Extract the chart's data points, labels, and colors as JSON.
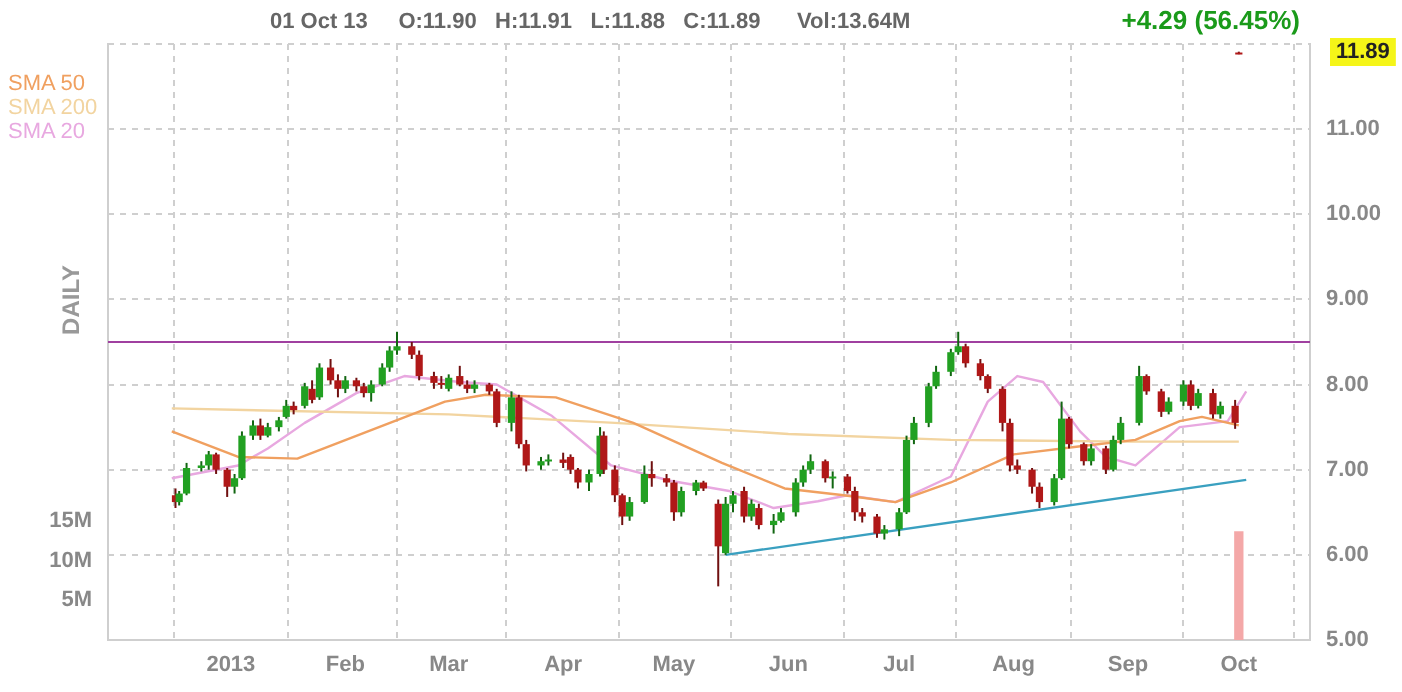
{
  "chart_data": {
    "type": "candlestick",
    "annotations": [
      "01 Oct 13     O:11.90   H:11.91   L:11.88   C:11.89      Vol:13.64M",
      "+4.29 (56.45%)",
      "11.89",
      "DAILY"
    ],
    "legend": "top left",
    "grid": true,
    "xlim": [
      "2012-12-15",
      "2013-10-04"
    ],
    "xticks": [
      {
        "value": "2013-01-01",
        "label": "2013"
      },
      {
        "value": "2013-02-01",
        "label": "Feb"
      },
      {
        "value": "2013-03-01",
        "label": "Mar"
      },
      {
        "value": "2013-04-01",
        "label": "Apr"
      },
      {
        "value": "2013-05-01",
        "label": "May"
      },
      {
        "value": "2013-06-01",
        "label": "Jun"
      },
      {
        "value": "2013-07-01",
        "label": "Jul"
      },
      {
        "value": "2013-08-01",
        "label": "Aug"
      },
      {
        "value": "2013-09-01",
        "label": "Sep"
      },
      {
        "value": "2013-10-01",
        "label": "Oct"
      }
    ],
    "ylim": [
      5,
      12
    ],
    "yticks": [
      {
        "value": 5,
        "label": "5.00"
      },
      {
        "value": 6,
        "label": "6.00"
      },
      {
        "value": 7,
        "label": "7.00"
      },
      {
        "value": 8,
        "label": "8.00"
      },
      {
        "value": 9,
        "label": "9.00"
      },
      {
        "value": 10,
        "label": "10.00"
      },
      {
        "value": 11,
        "label": "11.00"
      },
      {
        "value": 12,
        "label": null
      }
    ],
    "y2lim": [
      0,
      75
    ],
    "y2ticks": [
      {
        "value": 5,
        "label": "5M"
      },
      {
        "value": 10,
        "label": "10M"
      },
      {
        "value": 15,
        "label": "15M"
      }
    ],
    "ref_lines": [
      {
        "axis": "y",
        "value": 8.5,
        "color": "#a040a0"
      }
    ],
    "x": [
      "2012-12-17",
      "2012-12-18",
      "2012-12-20",
      "2012-12-24",
      "2012-12-26",
      "2012-12-28",
      "2012-12-31",
      "2013-01-02",
      "2013-01-04",
      "2013-01-07",
      "2013-01-09",
      "2013-01-11",
      "2013-01-14",
      "2013-01-16",
      "2013-01-18",
      "2013-01-21",
      "2013-01-23",
      "2013-01-25",
      "2013-01-28",
      "2013-01-30",
      "2013-02-01",
      "2013-02-04",
      "2013-02-06",
      "2013-02-08",
      "2013-02-11",
      "2013-02-13",
      "2013-02-15",
      "2013-02-19",
      "2013-02-21",
      "2013-02-25",
      "2013-02-27",
      "2013-03-01",
      "2013-03-04",
      "2013-03-06",
      "2013-03-08",
      "2013-03-12",
      "2013-03-14",
      "2013-03-18",
      "2013-03-20",
      "2013-03-22",
      "2013-03-26",
      "2013-03-28",
      "2013-04-01",
      "2013-04-03",
      "2013-04-05",
      "2013-04-08",
      "2013-04-11",
      "2013-04-12",
      "2013-04-15",
      "2013-04-17",
      "2013-04-19",
      "2013-04-23",
      "2013-04-25",
      "2013-04-29",
      "2013-05-01",
      "2013-05-03",
      "2013-05-07",
      "2013-05-09",
      "2013-05-13",
      "2013-05-15",
      "2013-05-17",
      "2013-05-20",
      "2013-05-22",
      "2013-05-24",
      "2013-05-28",
      "2013-05-30",
      "2013-06-03",
      "2013-06-05",
      "2013-06-07",
      "2013-06-11",
      "2013-06-13",
      "2013-06-17",
      "2013-06-19",
      "2013-06-21",
      "2013-06-25",
      "2013-06-27",
      "2013-07-01",
      "2013-07-03",
      "2013-07-05",
      "2013-07-09",
      "2013-07-11",
      "2013-07-15",
      "2013-07-17",
      "2013-07-19",
      "2013-07-23",
      "2013-07-25",
      "2013-07-29",
      "2013-07-31",
      "2013-08-02",
      "2013-08-06",
      "2013-08-08",
      "2013-08-12",
      "2013-08-14",
      "2013-08-16",
      "2013-08-20",
      "2013-08-22",
      "2013-08-26",
      "2013-08-28",
      "2013-08-30",
      "2013-09-04",
      "2013-09-06",
      "2013-09-10",
      "2013-09-12",
      "2013-09-16",
      "2013-09-18",
      "2013-09-20",
      "2013-09-24",
      "2013-09-26",
      "2013-09-30",
      "2013-10-01"
    ],
    "ohlc": [
      [
        6.7,
        6.78,
        6.55,
        6.62
      ],
      [
        6.62,
        6.75,
        6.58,
        6.72
      ],
      [
        6.72,
        7.08,
        6.7,
        7.02
      ],
      [
        7.02,
        7.1,
        6.98,
        7.05
      ],
      [
        7.05,
        7.22,
        7.0,
        7.18
      ],
      [
        7.18,
        7.2,
        6.95,
        7.0
      ],
      [
        7.0,
        7.02,
        6.68,
        6.8
      ],
      [
        6.8,
        6.95,
        6.72,
        6.9
      ],
      [
        6.9,
        7.45,
        6.88,
        7.4
      ],
      [
        7.4,
        7.58,
        7.35,
        7.52
      ],
      [
        7.52,
        7.6,
        7.35,
        7.4
      ],
      [
        7.4,
        7.55,
        7.38,
        7.5
      ],
      [
        7.5,
        7.62,
        7.45,
        7.58
      ],
      [
        7.62,
        7.82,
        7.6,
        7.75
      ],
      [
        7.75,
        7.8,
        7.65,
        7.7
      ],
      [
        7.75,
        8.02,
        7.72,
        7.98
      ],
      [
        7.95,
        8.05,
        7.78,
        7.82
      ],
      [
        7.85,
        8.25,
        7.82,
        8.2
      ],
      [
        8.2,
        8.3,
        8.0,
        8.05
      ],
      [
        8.05,
        8.12,
        7.85,
        7.95
      ],
      [
        7.95,
        8.1,
        7.9,
        8.05
      ],
      [
        8.05,
        8.08,
        7.92,
        7.98
      ],
      [
        7.98,
        8.02,
        7.85,
        7.9
      ],
      [
        7.9,
        8.05,
        7.8,
        8.0
      ],
      [
        8.0,
        8.25,
        7.98,
        8.2
      ],
      [
        8.2,
        8.45,
        8.15,
        8.4
      ],
      [
        8.4,
        8.62,
        8.35,
        8.45
      ],
      [
        8.45,
        8.5,
        8.3,
        8.35
      ],
      [
        8.35,
        8.4,
        8.05,
        8.1
      ],
      [
        8.1,
        8.15,
        7.95,
        8.02
      ],
      [
        8.02,
        8.1,
        7.95,
        8.0
      ],
      [
        7.95,
        8.12,
        7.92,
        8.08
      ],
      [
        8.1,
        8.22,
        7.98,
        8.0
      ],
      [
        8.0,
        8.05,
        7.9,
        7.95
      ],
      [
        7.95,
        8.05,
        7.9,
        8.0
      ],
      [
        8.0,
        8.02,
        7.88,
        7.92
      ],
      [
        7.92,
        7.95,
        7.5,
        7.55
      ],
      [
        7.55,
        7.92,
        7.45,
        7.85
      ],
      [
        7.85,
        7.88,
        7.25,
        7.3
      ],
      [
        7.3,
        7.35,
        6.98,
        7.05
      ],
      [
        7.05,
        7.15,
        7.0,
        7.1
      ],
      [
        7.1,
        7.18,
        7.05,
        7.12
      ],
      [
        7.12,
        7.2,
        7.02,
        7.08
      ],
      [
        7.15,
        7.18,
        6.95,
        7.0
      ],
      [
        7.0,
        7.02,
        6.78,
        6.85
      ],
      [
        6.85,
        7.0,
        6.75,
        6.95
      ],
      [
        6.95,
        7.5,
        6.92,
        7.4
      ],
      [
        7.4,
        7.45,
        6.95,
        7.0
      ],
      [
        7.0,
        7.05,
        6.62,
        6.7
      ],
      [
        6.7,
        6.72,
        6.35,
        6.45
      ],
      [
        6.45,
        6.68,
        6.4,
        6.62
      ],
      [
        6.62,
        7.05,
        6.6,
        6.95
      ],
      [
        6.95,
        7.1,
        6.8,
        6.9
      ],
      [
        6.9,
        6.95,
        6.8,
        6.85
      ],
      [
        6.85,
        6.88,
        6.4,
        6.5
      ],
      [
        6.5,
        6.8,
        6.45,
        6.75
      ],
      [
        6.75,
        6.88,
        6.7,
        6.85
      ],
      [
        6.85,
        6.87,
        6.75,
        6.78
      ],
      [
        6.6,
        6.65,
        5.63,
        6.1
      ],
      [
        6.02,
        6.68,
        6.0,
        6.6
      ],
      [
        6.6,
        6.75,
        6.5,
        6.7
      ],
      [
        6.75,
        6.8,
        6.38,
        6.45
      ],
      [
        6.45,
        6.65,
        6.4,
        6.6
      ],
      [
        6.55,
        6.6,
        6.3,
        6.35
      ],
      [
        6.35,
        6.48,
        6.25,
        6.4
      ],
      [
        6.4,
        6.55,
        6.38,
        6.5
      ],
      [
        6.5,
        6.9,
        6.45,
        6.85
      ],
      [
        6.85,
        7.05,
        6.8,
        7.0
      ],
      [
        7.0,
        7.18,
        6.95,
        7.1
      ],
      [
        7.1,
        7.12,
        6.85,
        6.9
      ],
      [
        6.9,
        6.98,
        6.78,
        6.92
      ],
      [
        6.92,
        6.95,
        6.72,
        6.75
      ],
      [
        6.75,
        6.8,
        6.4,
        6.5
      ],
      [
        6.5,
        6.55,
        6.38,
        6.45
      ],
      [
        6.45,
        6.48,
        6.2,
        6.25
      ],
      [
        6.25,
        6.35,
        6.18,
        6.3
      ],
      [
        6.3,
        6.55,
        6.22,
        6.5
      ],
      [
        6.5,
        7.4,
        6.48,
        7.35
      ],
      [
        7.35,
        7.62,
        7.3,
        7.55
      ],
      [
        7.55,
        8.02,
        7.5,
        7.98
      ],
      [
        7.98,
        8.22,
        7.95,
        8.15
      ],
      [
        8.15,
        8.42,
        8.1,
        8.38
      ],
      [
        8.38,
        8.62,
        8.35,
        8.45
      ],
      [
        8.45,
        8.48,
        8.2,
        8.25
      ],
      [
        8.25,
        8.3,
        8.05,
        8.1
      ],
      [
        8.1,
        8.12,
        7.9,
        7.95
      ],
      [
        7.95,
        7.98,
        7.45,
        7.55
      ],
      [
        7.55,
        7.6,
        6.98,
        7.05
      ],
      [
        7.05,
        7.12,
        6.95,
        7.0
      ],
      [
        7.0,
        7.02,
        6.72,
        6.8
      ],
      [
        6.8,
        6.85,
        6.55,
        6.62
      ],
      [
        6.62,
        6.95,
        6.58,
        6.9
      ],
      [
        6.9,
        7.8,
        6.88,
        7.6
      ],
      [
        7.6,
        7.62,
        7.25,
        7.3
      ],
      [
        7.3,
        7.32,
        7.05,
        7.1
      ],
      [
        7.1,
        7.3,
        7.05,
        7.25
      ],
      [
        7.25,
        7.28,
        6.95,
        7.0
      ],
      [
        7.0,
        7.4,
        6.98,
        7.35
      ],
      [
        7.35,
        7.62,
        7.3,
        7.55
      ],
      [
        7.55,
        8.22,
        7.52,
        8.1
      ],
      [
        8.1,
        8.12,
        7.88,
        7.92
      ],
      [
        7.92,
        7.95,
        7.62,
        7.68
      ],
      [
        7.68,
        7.85,
        7.65,
        7.8
      ],
      [
        7.8,
        8.05,
        7.75,
        8.0
      ],
      [
        8.0,
        8.05,
        7.7,
        7.75
      ],
      [
        7.75,
        7.95,
        7.72,
        7.9
      ],
      [
        7.9,
        7.95,
        7.6,
        7.65
      ],
      [
        7.65,
        7.8,
        7.6,
        7.75
      ],
      [
        7.75,
        7.82,
        7.48,
        7.55
      ],
      [
        11.9,
        11.91,
        11.88,
        11.89
      ]
    ],
    "series": [
      {
        "name": "SMA 50",
        "type": "line",
        "color": "#f0a060",
        "x": [
          "2012-12-16",
          "2013-01-03",
          "2013-01-19",
          "2013-02-28",
          "2013-03-11",
          "2013-03-30",
          "2013-04-20",
          "2013-05-14",
          "2013-05-31",
          "2013-06-16",
          "2013-06-30",
          "2013-07-15",
          "2013-08-01",
          "2013-08-18",
          "2013-09-03",
          "2013-09-15",
          "2013-09-21",
          "2013-10-01"
        ],
        "values": [
          7.45,
          7.15,
          7.13,
          7.8,
          7.88,
          7.85,
          7.55,
          7.08,
          6.78,
          6.7,
          6.62,
          6.85,
          7.18,
          7.27,
          7.35,
          7.57,
          7.62,
          7.52
        ]
      },
      {
        "name": "SMA 200",
        "type": "line",
        "color": "#f2d4a0",
        "x": [
          "2012-12-16",
          "2013-03-01",
          "2013-04-15",
          "2013-06-01",
          "2013-07-15",
          "2013-09-01",
          "2013-10-01"
        ],
        "values": [
          7.72,
          7.65,
          7.55,
          7.42,
          7.35,
          7.33,
          7.33
        ]
      },
      {
        "name": "SMA 20",
        "type": "line",
        "color": "#e8a8e0",
        "x": [
          "2012-12-16",
          "2013-01-03",
          "2013-01-11",
          "2013-01-21",
          "2013-02-04",
          "2013-02-17",
          "2013-03-04",
          "2013-03-14",
          "2013-03-29",
          "2013-04-14",
          "2013-04-30",
          "2013-05-16",
          "2013-05-28",
          "2013-06-09",
          "2013-06-17",
          "2013-06-30",
          "2013-07-15",
          "2013-07-25",
          "2013-08-02",
          "2013-08-09",
          "2013-08-19",
          "2013-08-26",
          "2013-09-03",
          "2013-09-15",
          "2013-09-28",
          "2013-10-03"
        ],
        "values": [
          6.9,
          7.05,
          7.25,
          7.55,
          7.9,
          8.1,
          8.03,
          8.0,
          7.63,
          7.05,
          6.87,
          6.75,
          6.55,
          6.63,
          6.7,
          6.62,
          6.92,
          7.8,
          8.1,
          8.03,
          7.45,
          7.15,
          7.05,
          7.5,
          7.57,
          7.92
        ]
      },
      {
        "type": "line",
        "color": "#3aa0c0",
        "x": [
          "2013-05-15",
          "2013-10-03"
        ],
        "values": [
          6.0,
          6.88
        ]
      },
      {
        "type": "bar",
        "axis": "y2",
        "color": "#f4a8a8",
        "x": [
          "2013-10-01"
        ],
        "values": [
          13.6
        ]
      }
    ]
  }
}
